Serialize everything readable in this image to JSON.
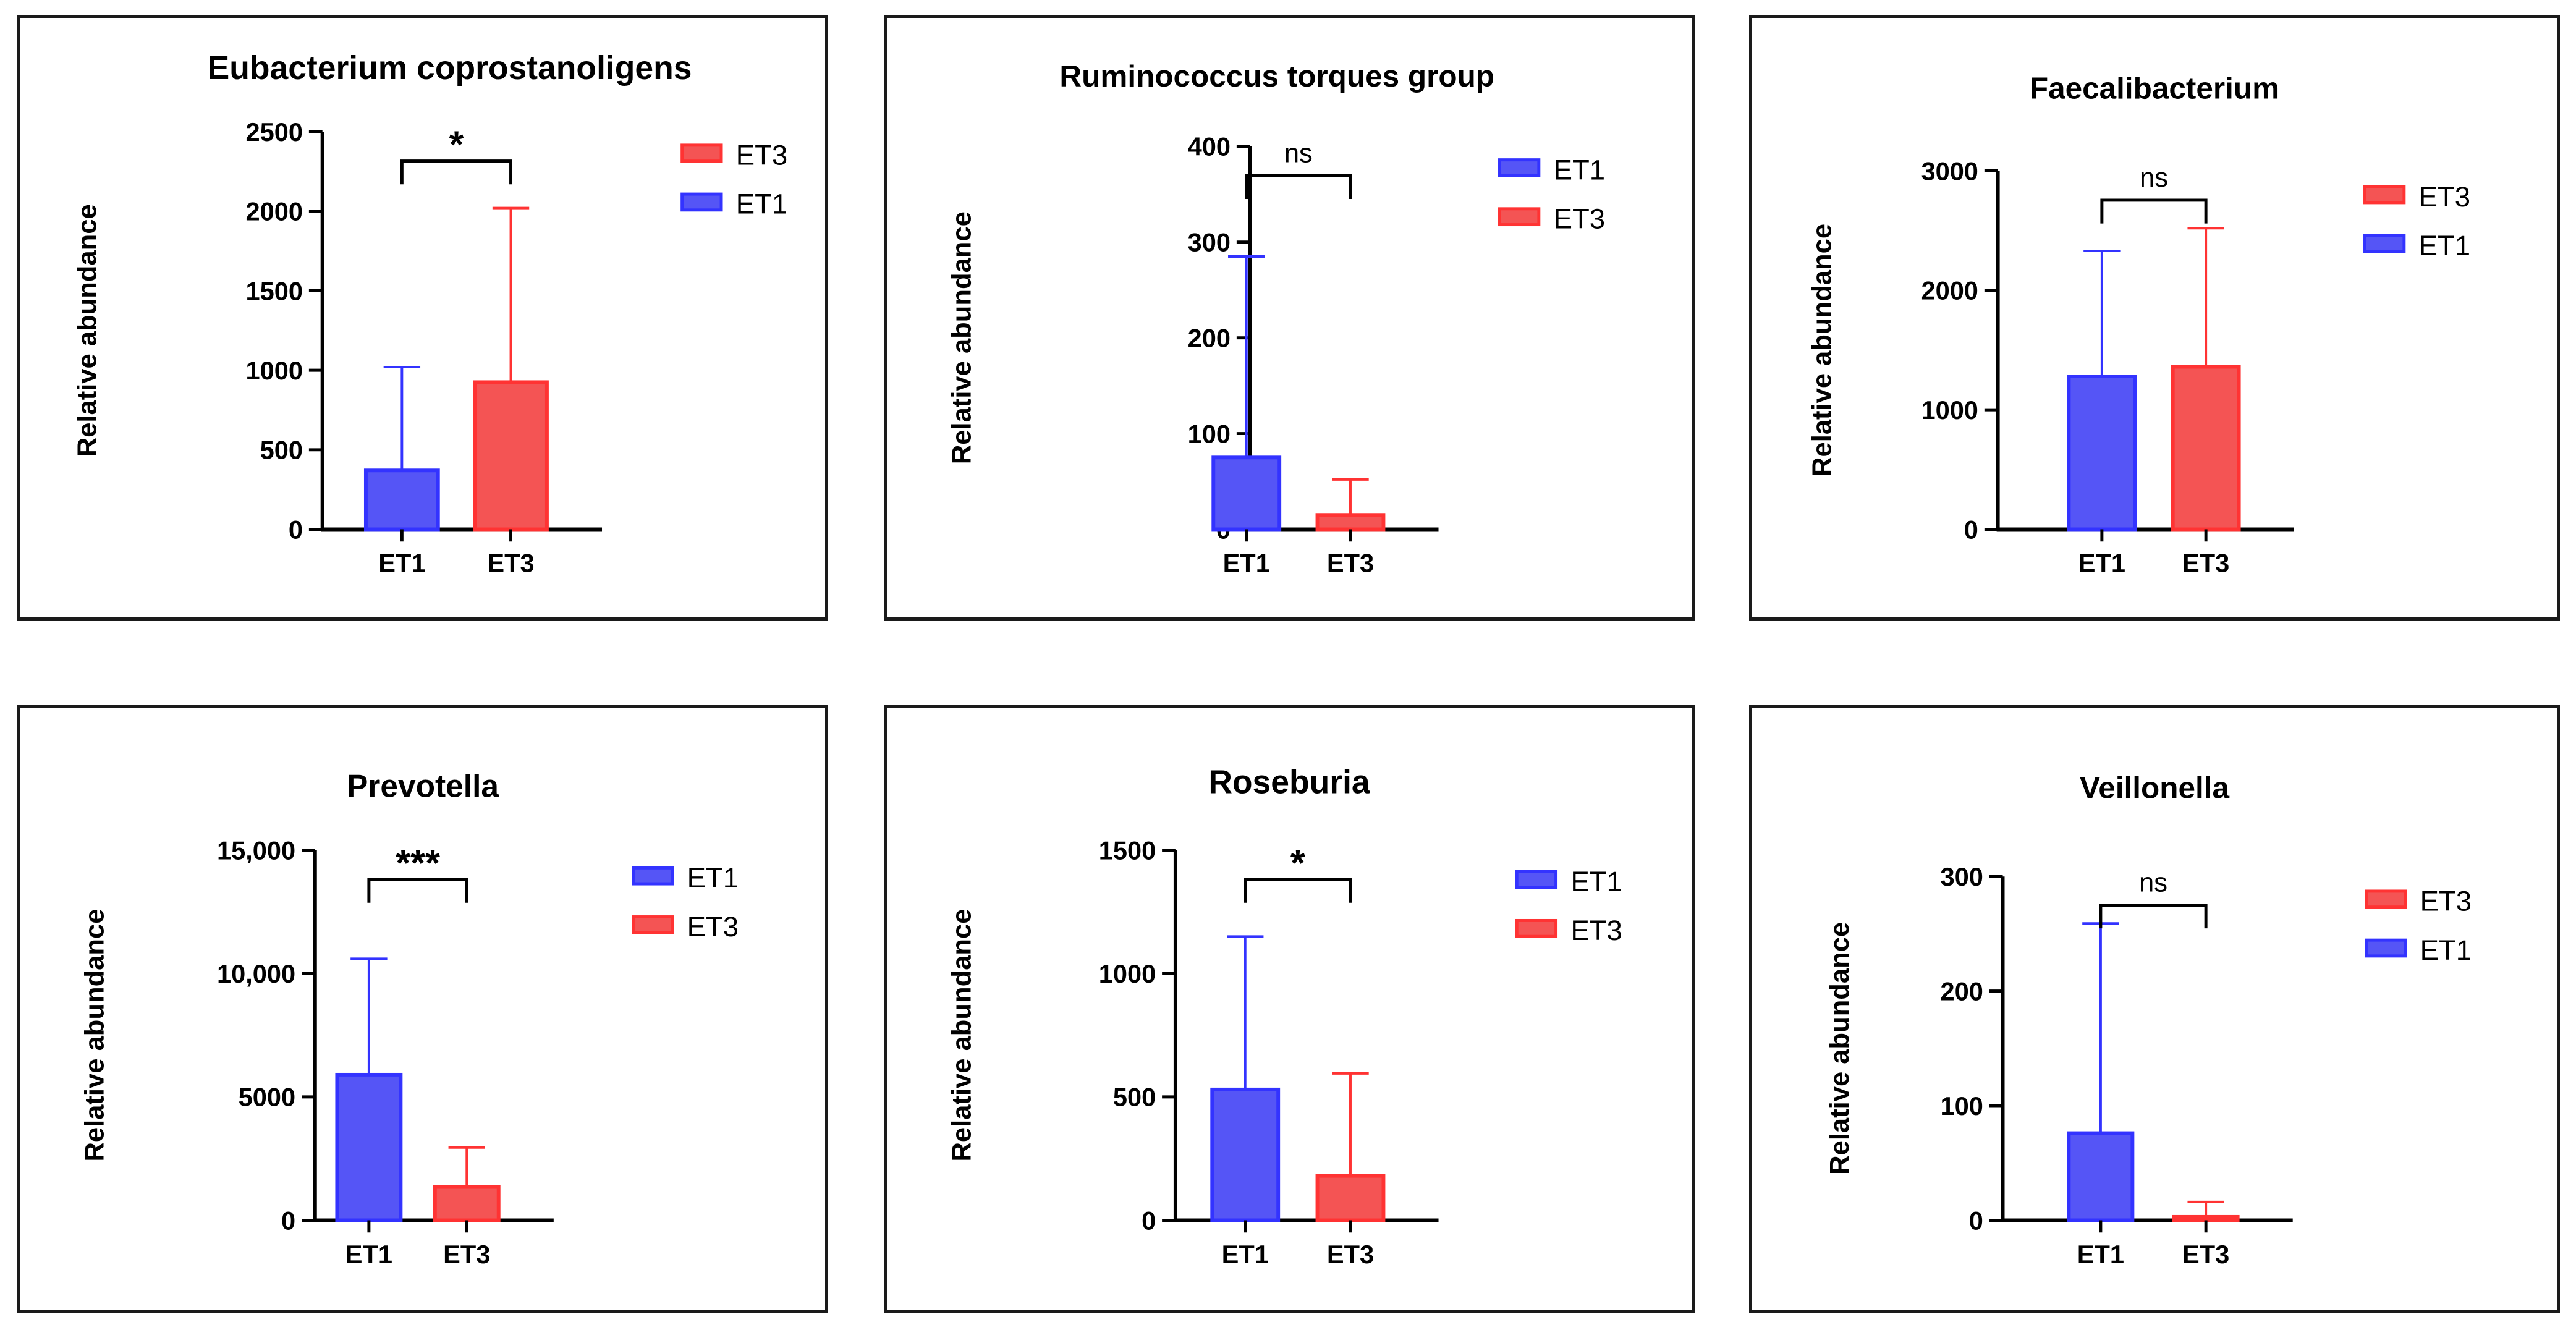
{
  "colors": {
    "ET1": "#3333ff",
    "ET3": "#ff3333",
    "ET1_fill": "#5555f6",
    "ET3_fill": "#f45454",
    "axis": "#000000"
  },
  "chart_data": [
    {
      "type": "bar",
      "title": "Eubacterium coprostanoligens",
      "ylabel": "Relative abundance",
      "ylim": [
        0,
        2500
      ],
      "yticks": [
        0,
        500,
        1000,
        1500,
        2000,
        2500
      ],
      "ytick_labels": [
        "0",
        "500",
        "1000",
        "1500",
        "2000",
        "2500"
      ],
      "categories": [
        "ET1",
        "ET3"
      ],
      "values": [
        370,
        925
      ],
      "errors": [
        1020,
        2020
      ],
      "significance": "*",
      "legend": [
        "ET3",
        "ET1"
      ]
    },
    {
      "type": "bar",
      "title": "Ruminococcus torques group",
      "ylabel": "Relative abundance",
      "ylim": [
        0,
        400
      ],
      "yticks": [
        0,
        100,
        200,
        300,
        400
      ],
      "ytick_labels": [
        "0",
        "100",
        "200",
        "300",
        "400"
      ],
      "categories": [
        "ET1",
        "ET3"
      ],
      "values": [
        75,
        15
      ],
      "errors": [
        285,
        52
      ],
      "significance": "ns",
      "legend": [
        "ET1",
        "ET3"
      ]
    },
    {
      "type": "bar",
      "title": "Faecalibacterium",
      "ylabel": "Relative abundance",
      "ylim": [
        0,
        3000
      ],
      "yticks": [
        0,
        1000,
        2000,
        3000
      ],
      "ytick_labels": [
        "0",
        "1000",
        "2000",
        "3000"
      ],
      "categories": [
        "ET1",
        "ET3"
      ],
      "values": [
        1280,
        1360
      ],
      "errors": [
        2330,
        2520
      ],
      "significance": "ns",
      "legend": [
        "ET3",
        "ET1"
      ]
    },
    {
      "type": "bar",
      "title": "Prevotella",
      "ylabel": "Relative abundance",
      "ylim": [
        0,
        15000
      ],
      "yticks": [
        0,
        5000,
        10000,
        15000
      ],
      "ytick_labels": [
        "0",
        "5000",
        "10,000",
        "15,000"
      ],
      "categories": [
        "ET1",
        "ET3"
      ],
      "values": [
        5900,
        1350
      ],
      "errors": [
        10600,
        2950
      ],
      "significance": "***",
      "legend": [
        "ET1",
        "ET3"
      ]
    },
    {
      "type": "bar",
      "title": "Roseburia",
      "ylabel": "Relative abundance",
      "ylim": [
        0,
        1500
      ],
      "yticks": [
        0,
        500,
        1000,
        1500
      ],
      "ytick_labels": [
        "0",
        "500",
        "1000",
        "1500"
      ],
      "categories": [
        "ET1",
        "ET3"
      ],
      "values": [
        530,
        180
      ],
      "errors": [
        1150,
        595
      ],
      "significance": "*",
      "legend": [
        "ET1",
        "ET3"
      ]
    },
    {
      "type": "bar",
      "title": "Veillonella",
      "ylabel": "Relative abundance",
      "ylim": [
        0,
        300
      ],
      "yticks": [
        0,
        100,
        200,
        300
      ],
      "ytick_labels": [
        "0",
        "100",
        "200",
        "300"
      ],
      "categories": [
        "ET1",
        "ET3"
      ],
      "values": [
        76,
        3
      ],
      "errors": [
        259,
        16
      ],
      "significance": "ns",
      "legend": [
        "ET3",
        "ET1"
      ]
    }
  ]
}
